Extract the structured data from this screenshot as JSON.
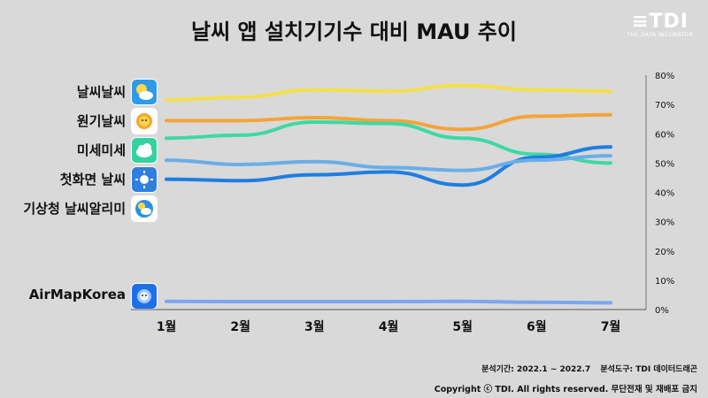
{
  "title": "날씨 앱 설치기기수 대비 MAU 추이",
  "logo": {
    "mark": "≡TDI",
    "sub": "THE DATA INCUBATOR"
  },
  "footer": {
    "period": "분석기간: 2022.1 ~ 2022.7",
    "tool": "분석도구: TDI 데이터드래곤",
    "copyright": "Copyright ⓒ TDI. All rights reserved. 무단전재 및 재배포 금지"
  },
  "apps": [
    {
      "label": "날씨날씨",
      "icon": "weather-cloud-sun-icon"
    },
    {
      "label": "원기날씨",
      "icon": "sun-face-icon"
    },
    {
      "label": "미세미세",
      "icon": "green-cloud-icon"
    },
    {
      "label": "첫화면 날씨",
      "icon": "blue-sun-icon"
    },
    {
      "label": "기상청 날씨알리미",
      "icon": "kma-weather-icon"
    },
    {
      "label": "AirMapKorea",
      "icon": "airmap-globe-icon"
    }
  ],
  "chart_data": {
    "type": "line",
    "categories": [
      "1월",
      "2월",
      "3월",
      "4월",
      "5월",
      "6월",
      "7월"
    ],
    "ylim": [
      0,
      80
    ],
    "yticks": [
      0,
      10,
      20,
      30,
      40,
      50,
      60,
      70,
      80
    ],
    "ytick_labels": [
      "0%",
      "10%",
      "20%",
      "30%",
      "40%",
      "50%",
      "60%",
      "70%",
      "80%"
    ],
    "grid": false,
    "series": [
      {
        "name": "날씨날씨",
        "color": "#f5e04a",
        "values": [
          71.5,
          72.5,
          75,
          74.5,
          76.5,
          75,
          74.5
        ]
      },
      {
        "name": "원기날씨",
        "color": "#f3a43a",
        "values": [
          64.5,
          64.5,
          65.5,
          64.5,
          61.5,
          66,
          66.5
        ]
      },
      {
        "name": "미세미세",
        "color": "#3dd9a4",
        "values": [
          58.5,
          59.5,
          64,
          63.5,
          58.5,
          53,
          50
        ]
      },
      {
        "name": "첫화면 날씨",
        "color": "#1e7ee0",
        "values": [
          44.5,
          44,
          46,
          47,
          42.5,
          52,
          55.5
        ]
      },
      {
        "name": "기상청 날씨알리미",
        "color": "#6aaee8",
        "values": [
          51,
          49.5,
          50.5,
          48.5,
          47.5,
          51,
          52.5
        ]
      },
      {
        "name": "AirMapKorea",
        "color": "#7ca6ee",
        "values": [
          2.8,
          2.7,
          2.7,
          2.7,
          2.8,
          2.5,
          2.3
        ]
      }
    ]
  }
}
